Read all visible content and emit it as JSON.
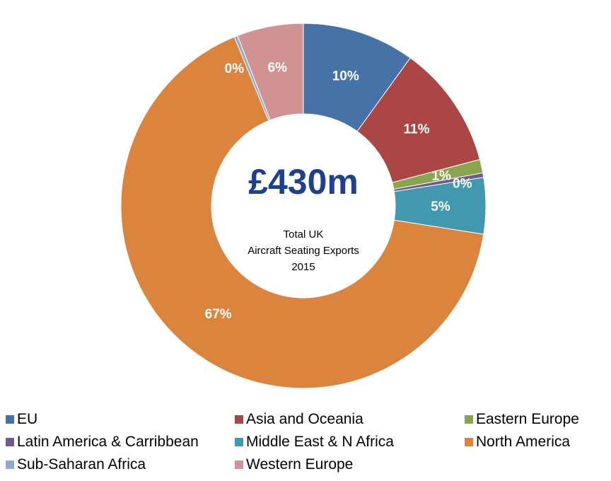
{
  "chart_data": {
    "type": "pie",
    "variant": "donut",
    "center_value": "£430m",
    "center_caption": [
      "Total UK",
      "Aircraft Seating Exports",
      "2015"
    ],
    "slices": [
      {
        "name": "EU",
        "value": 10,
        "label": "10%",
        "color": "#4572A7"
      },
      {
        "name": "Asia and Oceania",
        "value": 11,
        "label": "11%",
        "color": "#AA4643"
      },
      {
        "name": "Eastern Europe",
        "value": 1.2,
        "label": "1%",
        "color": "#89A54E"
      },
      {
        "name": "Latin America & Carribbean",
        "value": 0.4,
        "label": "0%",
        "color": "#71588F"
      },
      {
        "name": "Middle East & N Africa",
        "value": 5,
        "label": "5%",
        "color": "#4198AF"
      },
      {
        "name": "North America",
        "value": 66.6,
        "label": "67%",
        "color": "#DB843D"
      },
      {
        "name": "Sub-Saharan Africa",
        "value": 0.3,
        "label": "0%",
        "color": "#93A9CF"
      },
      {
        "name": "Western Europe",
        "value": 5.9,
        "label": "6%",
        "color": "#D19392"
      }
    ],
    "legend_position": "bottom"
  }
}
